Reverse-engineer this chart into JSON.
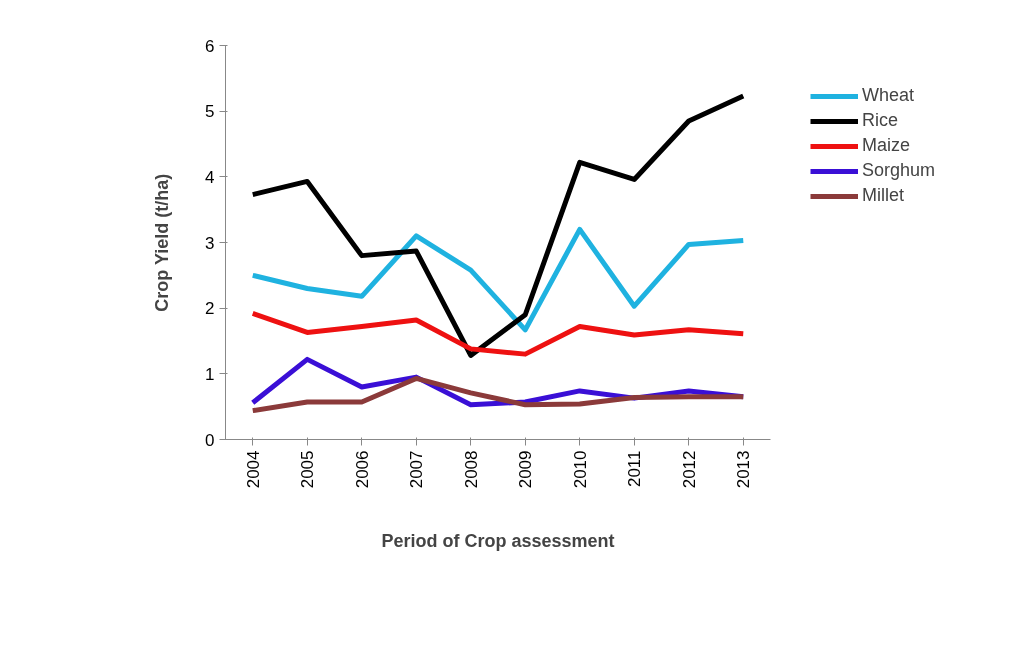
{
  "chart_data": {
    "type": "line",
    "xlabel": "Period of Crop assessment",
    "ylabel": "Crop Yield (t/ha)",
    "categories": [
      "2004",
      "2005",
      "2006",
      "2007",
      "2008",
      "2009",
      "2010",
      "2011",
      "2012",
      "2013"
    ],
    "ylim": [
      0,
      6
    ],
    "yticks": [
      0,
      1,
      2,
      3,
      4,
      5,
      6
    ],
    "grid": false,
    "legend": "right",
    "marker": "none",
    "line_style": "solid",
    "series": [
      {
        "name": "Wheat",
        "color": "#1fb2e0",
        "values": [
          2.5,
          2.3,
          2.18,
          3.1,
          2.58,
          1.67,
          3.2,
          2.03,
          2.97,
          3.03
        ]
      },
      {
        "name": "Rice",
        "color": "#000000",
        "values": [
          3.73,
          3.93,
          2.8,
          2.87,
          1.28,
          1.9,
          4.22,
          3.96,
          4.85,
          5.23
        ]
      },
      {
        "name": "Maize",
        "color": "#ee1111",
        "values": [
          1.92,
          1.63,
          1.72,
          1.82,
          1.38,
          1.3,
          1.72,
          1.59,
          1.67,
          1.61
        ]
      },
      {
        "name": "Sorghum",
        "color": "#3a0fd6",
        "values": [
          0.56,
          1.22,
          0.8,
          0.95,
          0.53,
          0.57,
          0.74,
          0.63,
          0.74,
          0.65
        ]
      },
      {
        "name": "Millet",
        "color": "#8b3a3a",
        "values": [
          0.44,
          0.57,
          0.57,
          0.93,
          0.71,
          0.53,
          0.54,
          0.64,
          0.65,
          0.65
        ]
      }
    ]
  }
}
